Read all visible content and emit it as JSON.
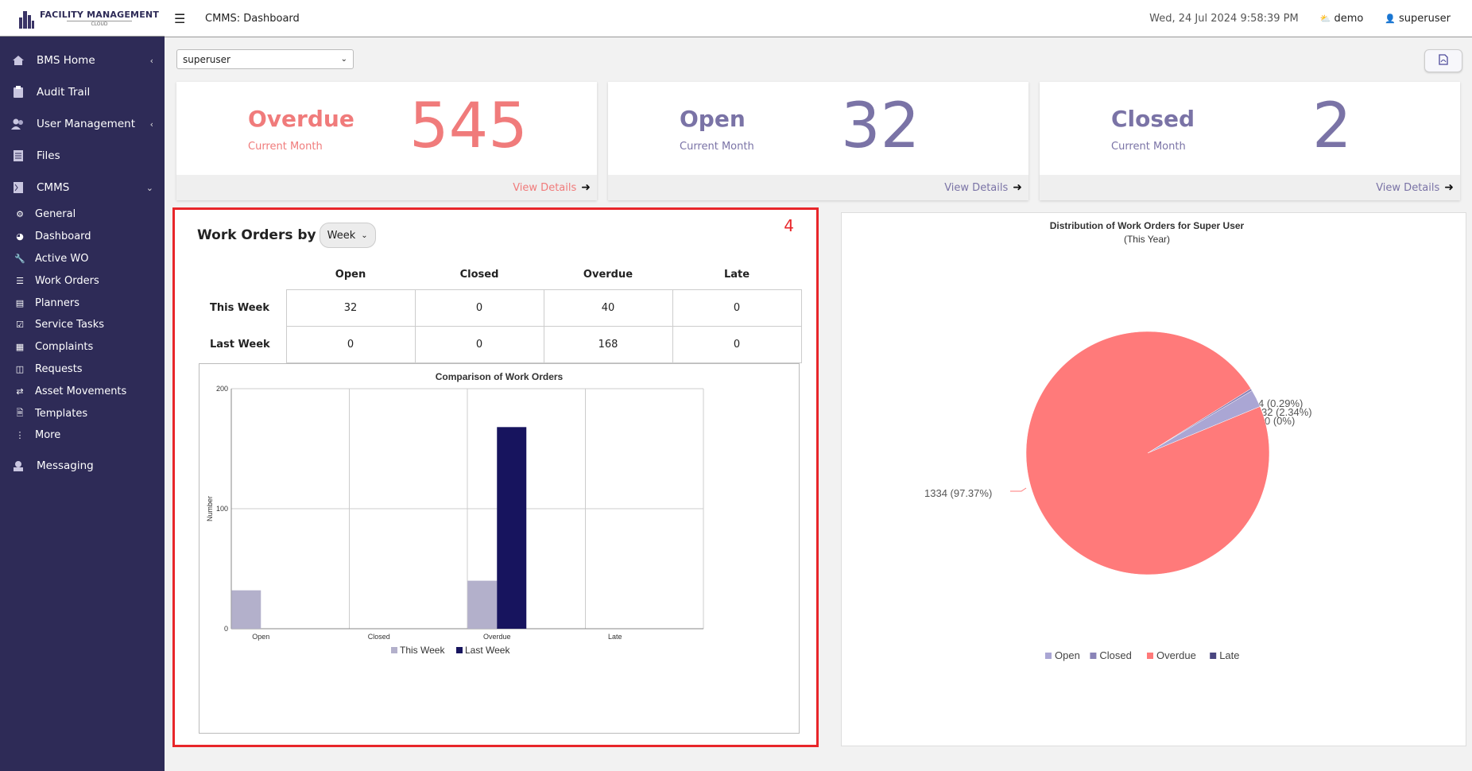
{
  "header": {
    "logo_title": "FACILITY MANAGEMENT",
    "logo_sub": "CLOUD",
    "title": "CMMS: Dashboard",
    "datetime": "Wed, 24 Jul 2024 9:58:39 PM",
    "site": "demo",
    "user": "superuser"
  },
  "sidebar": {
    "main_items": [
      {
        "label": "BMS Home",
        "icon": "home-icon"
      },
      {
        "label": "Audit Trail",
        "icon": "clipboard-icon"
      },
      {
        "label": "User Management",
        "icon": "users-icon"
      },
      {
        "label": "Files",
        "icon": "files-icon"
      },
      {
        "label": "CMMS",
        "icon": "cmms-icon"
      }
    ],
    "sub_items": [
      "General",
      "Dashboard",
      "Active WO",
      "Work Orders",
      "Planners",
      "Service Tasks",
      "Complaints",
      "Requests",
      "Asset Movements",
      "Templates",
      "More"
    ],
    "messaging": "Messaging"
  },
  "filter": {
    "user_select": "superuser"
  },
  "cards": [
    {
      "title": "Overdue",
      "sub": "Current Month",
      "value": "545",
      "link": "View Details",
      "color": "#f07b7b"
    },
    {
      "title": "Open",
      "sub": "Current Month",
      "value": "32",
      "link": "View Details",
      "color": "#7a73a6"
    },
    {
      "title": "Closed",
      "sub": "Current Month",
      "value": "2",
      "link": "View Details",
      "color": "#7a73a6"
    }
  ],
  "work_orders": {
    "badge": "4",
    "heading": "Work Orders by",
    "period": "Week",
    "columns": [
      "Open",
      "Closed",
      "Overdue",
      "Late"
    ],
    "rows": [
      {
        "label": "This Week",
        "values": [
          "32",
          "0",
          "40",
          "0"
        ]
      },
      {
        "label": "Last Week",
        "values": [
          "0",
          "0",
          "168",
          "0"
        ]
      }
    ]
  },
  "chart_data": [
    {
      "type": "bar",
      "title": "Comparison of Work Orders",
      "ylabel": "Number",
      "xlabel": "",
      "categories": [
        "Open",
        "Closed",
        "Overdue",
        "Late"
      ],
      "ylim": [
        0,
        200
      ],
      "yticks": [
        0,
        100,
        200
      ],
      "series": [
        {
          "name": "This Week",
          "values": [
            32,
            0,
            40,
            0
          ],
          "color": "#b3b0cb"
        },
        {
          "name": "Last Week",
          "values": [
            0,
            0,
            168,
            0
          ],
          "color": "#17145e"
        }
      ],
      "grid": true,
      "legend": "bottom"
    },
    {
      "type": "pie",
      "title": "Distribution of Work Orders for Super User",
      "subtitle": "(This Year)",
      "slices": [
        {
          "name": "Open",
          "value": 32,
          "label": "32 (2.34%)",
          "color": "#aaa6d4"
        },
        {
          "name": "Closed",
          "value": 4,
          "label": "4 (0.29%)",
          "color": "#8a84b8"
        },
        {
          "name": "Overdue",
          "value": 1334,
          "label": "1334 (97.37%)",
          "color": "#ff7a7a"
        },
        {
          "name": "Late",
          "value": 0,
          "label": "0 (0%)",
          "color": "#4a4680"
        }
      ],
      "legend": "bottom"
    }
  ]
}
